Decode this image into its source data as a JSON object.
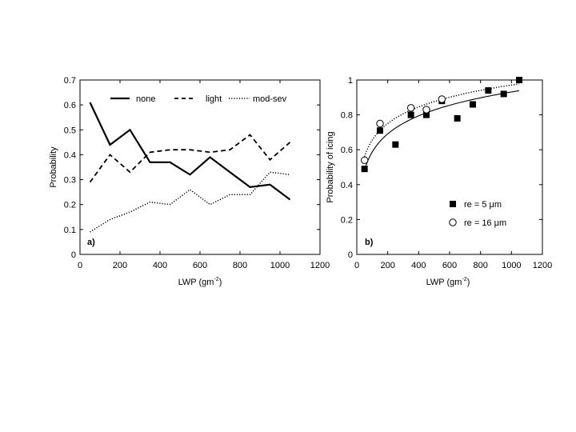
{
  "chart_data": [
    {
      "type": "line",
      "panel_label": "a)",
      "xlabel": "LWP (gm",
      "xlabel_sup": "-2",
      "xlabel_close": ")",
      "ylabel": "Probability",
      "xlim": [
        0,
        1200
      ],
      "ylim": [
        0,
        0.7
      ],
      "xticks": [
        "0",
        "200",
        "400",
        "600",
        "800",
        "1000",
        "1200"
      ],
      "yticks": [
        "0",
        "0.1",
        "0.2",
        "0.3",
        "0.4",
        "0.5",
        "0.6",
        "0.7"
      ],
      "legend_position": "top",
      "x": [
        50,
        150,
        250,
        350,
        450,
        550,
        650,
        750,
        850,
        950,
        1050
      ],
      "series": [
        {
          "name": "none",
          "style": "solid",
          "values": [
            0.61,
            0.44,
            0.5,
            0.37,
            0.37,
            0.32,
            0.39,
            0.33,
            0.27,
            0.28,
            0.22
          ]
        },
        {
          "name": "light",
          "style": "dashed",
          "values": [
            0.29,
            0.4,
            0.33,
            0.41,
            0.42,
            0.42,
            0.41,
            0.42,
            0.48,
            0.38,
            0.45
          ]
        },
        {
          "name": "mod-sev",
          "style": "dotted",
          "values": [
            0.09,
            0.14,
            0.17,
            0.21,
            0.2,
            0.26,
            0.2,
            0.24,
            0.24,
            0.33,
            0.32
          ]
        }
      ]
    },
    {
      "type": "scatter",
      "panel_label": "b)",
      "xlabel": "LWP (gm",
      "xlabel_sup": "-2",
      "xlabel_close": ")",
      "ylabel": "Probability of icing",
      "xlim": [
        0,
        1200
      ],
      "ylim": [
        0,
        1
      ],
      "xticks": [
        "0",
        "200",
        "400",
        "600",
        "800",
        "1000",
        "1200"
      ],
      "yticks": [
        "0",
        "0.2",
        "0.4",
        "0.6",
        "0.8",
        "1"
      ],
      "legend_position": "bottom-right",
      "series": [
        {
          "name": "re = 5 μm",
          "marker": "filled-square",
          "fit": "solid",
          "x": [
            50,
            150,
            250,
            350,
            450,
            550,
            650,
            750,
            850,
            950,
            1050
          ],
          "y": [
            0.49,
            0.71,
            0.63,
            0.8,
            0.8,
            0.88,
            0.78,
            0.86,
            0.94,
            0.92,
            1.0
          ]
        },
        {
          "name": "re = 16 μm",
          "marker": "open-circle",
          "fit": "dotted",
          "x": [
            50,
            150,
            350,
            450,
            550
          ],
          "y": [
            0.54,
            0.75,
            0.84,
            0.83,
            0.89
          ]
        }
      ]
    }
  ]
}
